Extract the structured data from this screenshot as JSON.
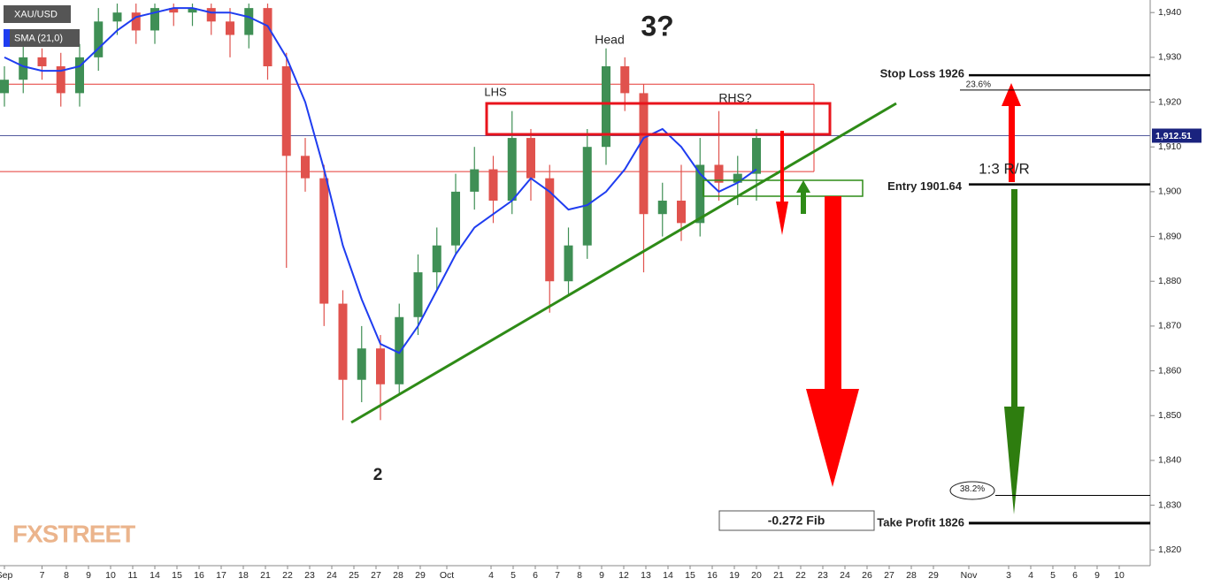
{
  "chart_data": {
    "type": "candlestick",
    "symbol": "XAU/USD",
    "up_color": "#3f8f55",
    "down_color": "#e0524d",
    "x": [
      0,
      0.85,
      1.7,
      2.55,
      3.4,
      4.25,
      5.1,
      5.95,
      6.8,
      7.65,
      8.5,
      9.35,
      10.2,
      11.05,
      11.9,
      12.75,
      13.6,
      14.45,
      15.3,
      16.15,
      17,
      17.85,
      18.7,
      19.55,
      20.4,
      21.25,
      22.1,
      22.95,
      23.8,
      24.65,
      25.5,
      26.35,
      27.2,
      28.05,
      28.9,
      29.75,
      30.6,
      31.45,
      32.3,
      33.15,
      34
    ],
    "open": [
      1922,
      1925,
      1930,
      1928,
      1922,
      1930,
      1938,
      1940,
      1936,
      1941,
      1940,
      1941,
      1938,
      1935,
      1941,
      1928,
      1908,
      1903,
      1875,
      1858,
      1865,
      1857,
      1872,
      1882,
      1888,
      1900,
      1905,
      1898,
      1912,
      1903,
      1880,
      1888,
      1910,
      1928,
      1922,
      1895,
      1898,
      1893,
      1906,
      1902,
      1904
    ],
    "high": [
      1928,
      1934,
      1932,
      1931,
      1933,
      1941,
      1942,
      1942,
      1942,
      1942,
      1942,
      1942,
      1941,
      1942,
      1942,
      1931,
      1912,
      1906,
      1878,
      1870,
      1868,
      1875,
      1886,
      1892,
      1904,
      1910,
      1908,
      1918,
      1914,
      1906,
      1892,
      1914,
      1932,
      1930,
      1924,
      1902,
      1906,
      1912,
      1918,
      1908,
      1914
    ],
    "low": [
      1919,
      1922,
      1925,
      1919,
      1919,
      1927,
      1935,
      1933,
      1933,
      1937,
      1937,
      1935,
      1930,
      1932,
      1925,
      1883,
      1900,
      1870,
      1849,
      1853,
      1849,
      1855,
      1868,
      1878,
      1886,
      1896,
      1893,
      1895,
      1898,
      1873,
      1877,
      1885,
      1906,
      1918,
      1882,
      1890,
      1889,
      1890,
      1898,
      1897,
      1898
    ],
    "close": [
      1925,
      1930,
      1928,
      1922,
      1930,
      1938,
      1940,
      1936,
      1941,
      1940,
      1941,
      1938,
      1935,
      1941,
      1928,
      1908,
      1903,
      1875,
      1858,
      1865,
      1857,
      1872,
      1882,
      1888,
      1900,
      1905,
      1898,
      1912,
      1903,
      1880,
      1888,
      1910,
      1928,
      1922,
      1895,
      1898,
      1893,
      1906,
      1902,
      1904,
      1912
    ],
    "sma": {
      "name": "SMA (21,0)",
      "color": "#1f3df0",
      "values": [
        1930,
        1928,
        1927,
        1927,
        1928,
        1932,
        1936,
        1939,
        1940,
        1941,
        1941,
        1940,
        1940,
        1939,
        1937,
        1930,
        1920,
        1905,
        1888,
        1876,
        1866,
        1864,
        1870,
        1878,
        1886,
        1892,
        1895,
        1898,
        1903,
        1900,
        1896,
        1897,
        1900,
        1905,
        1912,
        1914,
        1910,
        1904,
        1900,
        1902,
        1905
      ]
    },
    "xlim": [
      -0.2,
      51.8
    ],
    "ylim": [
      1816.5,
      1942.8
    ],
    "xticks": [
      {
        "value": 0,
        "label": "Sep"
      },
      {
        "value": 1.7,
        "label": "7"
      },
      {
        "value": 2.8,
        "label": "8"
      },
      {
        "value": 3.8,
        "label": "9"
      },
      {
        "value": 4.8,
        "label": "10"
      },
      {
        "value": 5.8,
        "label": "11"
      },
      {
        "value": 6.8,
        "label": "14"
      },
      {
        "value": 7.8,
        "label": "15"
      },
      {
        "value": 8.8,
        "label": "16"
      },
      {
        "value": 9.8,
        "label": "17"
      },
      {
        "value": 10.8,
        "label": "18"
      },
      {
        "value": 11.8,
        "label": "21"
      },
      {
        "value": 12.8,
        "label": "22"
      },
      {
        "value": 13.8,
        "label": "23"
      },
      {
        "value": 14.8,
        "label": "24"
      },
      {
        "value": 15.8,
        "label": "25"
      },
      {
        "value": 16.8,
        "label": "27"
      },
      {
        "value": 17.8,
        "label": "28"
      },
      {
        "value": 18.8,
        "label": "29"
      },
      {
        "value": 20,
        "label": "Oct"
      },
      {
        "value": 22,
        "label": "4"
      },
      {
        "value": 23,
        "label": "5"
      },
      {
        "value": 24,
        "label": "6"
      },
      {
        "value": 25,
        "label": "7"
      },
      {
        "value": 26,
        "label": "8"
      },
      {
        "value": 27,
        "label": "9"
      },
      {
        "value": 28,
        "label": "12"
      },
      {
        "value": 29,
        "label": "13"
      },
      {
        "value": 30,
        "label": "14"
      },
      {
        "value": 31,
        "label": "15"
      },
      {
        "value": 32,
        "label": "16"
      },
      {
        "value": 33,
        "label": "19"
      },
      {
        "value": 34,
        "label": "20"
      },
      {
        "value": 35,
        "label": "21"
      },
      {
        "value": 36,
        "label": "22"
      },
      {
        "value": 37,
        "label": "23"
      },
      {
        "value": 38,
        "label": "24"
      },
      {
        "value": 39,
        "label": "26"
      },
      {
        "value": 40,
        "label": "27"
      },
      {
        "value": 41,
        "label": "28"
      },
      {
        "value": 42,
        "label": "29"
      },
      {
        "value": 43.6,
        "label": "Nov"
      },
      {
        "value": 45.4,
        "label": "3"
      },
      {
        "value": 46.4,
        "label": "4"
      },
      {
        "value": 47.4,
        "label": "5"
      },
      {
        "value": 48.4,
        "label": "6"
      },
      {
        "value": 49.4,
        "label": "9"
      },
      {
        "value": 50.4,
        "label": "10"
      }
    ],
    "yticks": [
      {
        "value": 1820,
        "label": "1,820"
      },
      {
        "value": 1830,
        "label": "1,830"
      },
      {
        "value": 1840,
        "label": "1,840"
      },
      {
        "value": 1850,
        "label": "1,850"
      },
      {
        "value": 1860,
        "label": "1,860"
      },
      {
        "value": 1870,
        "label": "1,870"
      },
      {
        "value": 1880,
        "label": "1,880"
      },
      {
        "value": 1890,
        "label": "1,890"
      },
      {
        "value": 1900,
        "label": "1,900"
      },
      {
        "value": 1910,
        "label": "1,910"
      },
      {
        "value": 1920,
        "label": "1,920"
      },
      {
        "value": 1930,
        "label": "1,930"
      },
      {
        "value": 1940,
        "label": "1,940"
      }
    ],
    "last_price": {
      "value": 1912.51,
      "label": "1,912.51",
      "color": "#1a237e"
    },
    "zone": {
      "top": 1924,
      "bottom": 1904.5,
      "color": "#e53935"
    },
    "levels": [
      {
        "label": "Stop Loss 1926",
        "value": 1926
      },
      {
        "label": "23.6%",
        "value": 1922.7
      },
      {
        "label": "Entry 1901.64",
        "value": 1901.64
      },
      {
        "label": "38.2%",
        "value": 1832.2
      },
      {
        "label": "Take Profit 1826",
        "value": 1826
      }
    ],
    "annotations": [
      "3?",
      "Head",
      "LHS",
      "RHS?",
      "2",
      "1:3 R/R",
      "-0.272 Fib"
    ],
    "watermark": "FXSTREET"
  }
}
